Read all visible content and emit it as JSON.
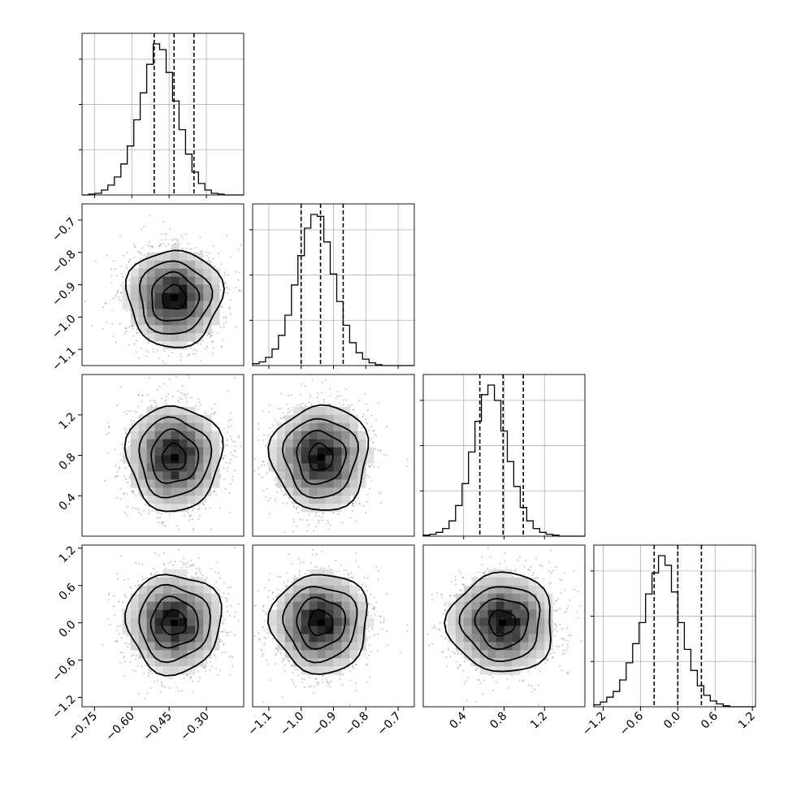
{
  "chart_data": {
    "type": "corner",
    "title": "",
    "parameters": [
      {
        "index": 0,
        "range": [
          -0.8,
          -0.15
        ],
        "ticks": [
          -0.75,
          -0.6,
          -0.45,
          -0.3
        ],
        "tick_labels": [
          "−0.75",
          "−0.60",
          "−0.45",
          "−0.30"
        ],
        "quantiles": [
          -0.51,
          -0.43,
          -0.35
        ]
      },
      {
        "index": 1,
        "range": [
          -1.15,
          -0.65
        ],
        "ticks": [
          -1.1,
          -1.0,
          -0.9,
          -0.8,
          -0.7
        ],
        "tick_labels": [
          "−1.1",
          "−1.0",
          "−0.9",
          "−0.8",
          "−0.7"
        ],
        "quantiles": [
          -1.0,
          -0.94,
          -0.87
        ]
      },
      {
        "index": 2,
        "range": [
          0.0,
          1.6
        ],
        "ticks": [
          0.4,
          0.8,
          1.2
        ],
        "tick_labels": [
          "0.4",
          "0.8",
          "1.2"
        ],
        "quantiles": [
          0.56,
          0.79,
          0.99
        ]
      },
      {
        "index": 3,
        "range": [
          -1.35,
          1.25
        ],
        "ticks": [
          -1.2,
          -0.6,
          0.0,
          0.6,
          1.2
        ],
        "tick_labels": [
          "−1.2",
          "−0.6",
          "0.0",
          "0.6",
          "1.2"
        ],
        "quantiles": [
          -0.38,
          0.0,
          0.38
        ]
      }
    ],
    "marginals": [
      {
        "param": 0,
        "bins_range": [
          -0.8,
          -0.15
        ],
        "counts": [
          0,
          1,
          2,
          6,
          12,
          22,
          38,
          60,
          92,
          125,
          160,
          185,
          178,
          150,
          115,
          80,
          50,
          28,
          14,
          6,
          2,
          1,
          0,
          0,
          0
        ]
      },
      {
        "param": 1,
        "bins_range": [
          -1.15,
          -0.65
        ],
        "counts": [
          2,
          4,
          9,
          18,
          33,
          55,
          88,
          120,
          150,
          165,
          163,
          135,
          100,
          70,
          44,
          25,
          14,
          7,
          3,
          1,
          0,
          0,
          0,
          0,
          0
        ]
      },
      {
        "param": 2,
        "bins_range": [
          0.0,
          1.6
        ],
        "counts": [
          1,
          2,
          4,
          8,
          16,
          32,
          55,
          88,
          120,
          148,
          158,
          142,
          110,
          78,
          52,
          30,
          16,
          8,
          4,
          2,
          1,
          0,
          0,
          0,
          0
        ]
      },
      {
        "param": 3,
        "bins_range": [
          -1.35,
          1.25
        ],
        "counts": [
          2,
          5,
          10,
          16,
          28,
          46,
          66,
          88,
          118,
          140,
          158,
          148,
          120,
          88,
          60,
          38,
          22,
          12,
          6,
          3,
          1,
          0,
          0,
          0,
          0
        ]
      }
    ],
    "joint": [
      {
        "x_param": 0,
        "y_param": 1,
        "x_center": -0.43,
        "y_center": -0.94,
        "x_spread": 0.095,
        "y_spread": 0.075
      },
      {
        "x_param": 0,
        "y_param": 2,
        "x_center": -0.43,
        "y_center": 0.78,
        "x_spread": 0.095,
        "y_spread": 0.26
      },
      {
        "x_param": 1,
        "y_param": 2,
        "x_center": -0.94,
        "y_center": 0.78,
        "x_spread": 0.075,
        "y_spread": 0.26
      },
      {
        "x_param": 0,
        "y_param": 3,
        "x_center": -0.43,
        "y_center": 0.0,
        "x_spread": 0.095,
        "y_spread": 0.4
      },
      {
        "x_param": 1,
        "y_param": 3,
        "x_center": -0.94,
        "y_center": 0.0,
        "x_spread": 0.075,
        "y_spread": 0.4
      },
      {
        "x_param": 2,
        "y_param": 3,
        "x_center": 0.78,
        "y_center": 0.0,
        "x_spread": 0.26,
        "y_spread": 0.4
      }
    ],
    "contour_levels_sigma": [
      0.5,
      1.0,
      1.5,
      2.0
    ],
    "grid": true,
    "legend": "none",
    "colors": {
      "line": "#000000",
      "grid": "#b0b0b0",
      "points": "#7f7f7f"
    }
  }
}
